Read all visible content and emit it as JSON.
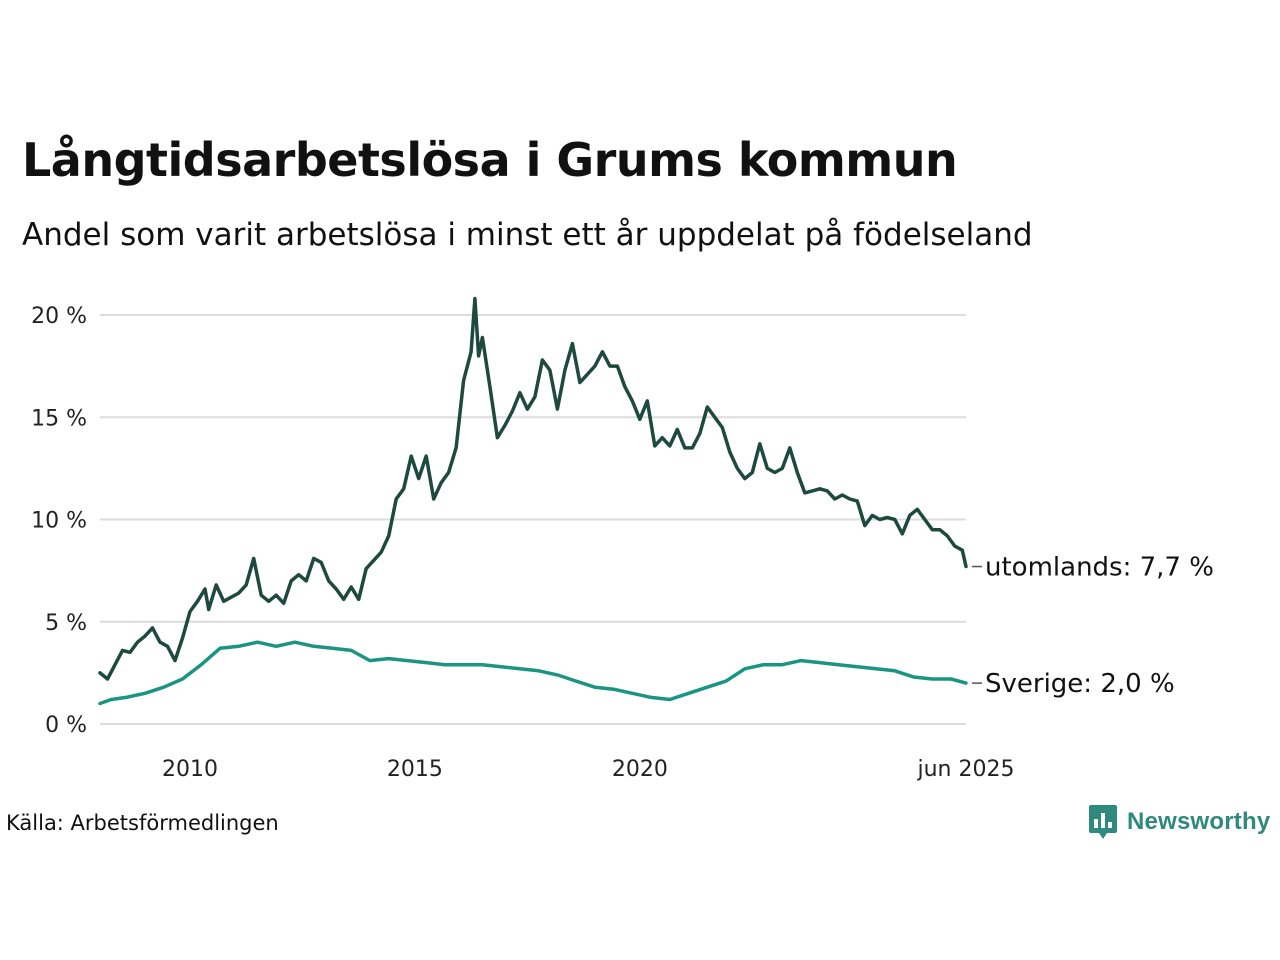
{
  "title": "Långtidsarbetslösa i Grums kommun",
  "subtitle": "Andel som varit arbetslösa i minst ett år uppdelat på födelseland",
  "source": "Källa: Arbetsförmedlingen",
  "brand": {
    "name": "Newsworthy",
    "icon": "newsworthy-logo-icon",
    "color": "#2e8a7c"
  },
  "chart_data": {
    "type": "line",
    "x_unit": "month",
    "x_ticks": [
      "2010",
      "2015",
      "2020",
      "jun 2025"
    ],
    "y_ticks": [
      "0 %",
      "5 %",
      "10 %",
      "15 %",
      "20 %"
    ],
    "ylim": [
      0,
      20
    ],
    "grid": true,
    "series": [
      {
        "name": "utomlands",
        "end_label": "utomlands: 7,7 %",
        "color": "#1e4a3e",
        "points": [
          [
            "2008-01",
            2.5
          ],
          [
            "2008-03",
            2.2
          ],
          [
            "2008-05",
            2.9
          ],
          [
            "2008-07",
            3.6
          ],
          [
            "2008-09",
            3.5
          ],
          [
            "2008-11",
            4.0
          ],
          [
            "2009-01",
            4.3
          ],
          [
            "2009-03",
            4.7
          ],
          [
            "2009-05",
            4.0
          ],
          [
            "2009-07",
            3.8
          ],
          [
            "2009-09",
            3.1
          ],
          [
            "2009-11",
            4.2
          ],
          [
            "2010-01",
            5.5
          ],
          [
            "2010-03",
            6.0
          ],
          [
            "2010-05",
            6.6
          ],
          [
            "2010-06",
            5.6
          ],
          [
            "2010-08",
            6.8
          ],
          [
            "2010-10",
            6.0
          ],
          [
            "2010-12",
            6.2
          ],
          [
            "2011-02",
            6.4
          ],
          [
            "2011-04",
            6.8
          ],
          [
            "2011-06",
            8.1
          ],
          [
            "2011-08",
            6.3
          ],
          [
            "2011-10",
            6.0
          ],
          [
            "2011-12",
            6.3
          ],
          [
            "2012-02",
            5.9
          ],
          [
            "2012-04",
            7.0
          ],
          [
            "2012-06",
            7.3
          ],
          [
            "2012-08",
            7.0
          ],
          [
            "2012-10",
            8.1
          ],
          [
            "2012-12",
            7.9
          ],
          [
            "2013-02",
            7.0
          ],
          [
            "2013-04",
            6.6
          ],
          [
            "2013-06",
            6.1
          ],
          [
            "2013-08",
            6.7
          ],
          [
            "2013-10",
            6.1
          ],
          [
            "2013-12",
            7.6
          ],
          [
            "2014-02",
            8.0
          ],
          [
            "2014-04",
            8.4
          ],
          [
            "2014-06",
            9.2
          ],
          [
            "2014-08",
            11.0
          ],
          [
            "2014-10",
            11.5
          ],
          [
            "2014-12",
            13.1
          ],
          [
            "2015-02",
            12.0
          ],
          [
            "2015-04",
            13.1
          ],
          [
            "2015-06",
            11.0
          ],
          [
            "2015-08",
            11.8
          ],
          [
            "2015-10",
            12.3
          ],
          [
            "2015-12",
            13.5
          ],
          [
            "2016-02",
            16.8
          ],
          [
            "2016-04",
            18.2
          ],
          [
            "2016-05",
            20.8
          ],
          [
            "2016-06",
            18.0
          ],
          [
            "2016-07",
            18.9
          ],
          [
            "2016-09",
            16.5
          ],
          [
            "2016-11",
            14.0
          ],
          [
            "2017-01",
            14.6
          ],
          [
            "2017-03",
            15.3
          ],
          [
            "2017-05",
            16.2
          ],
          [
            "2017-07",
            15.4
          ],
          [
            "2017-09",
            16.0
          ],
          [
            "2017-11",
            17.8
          ],
          [
            "2018-01",
            17.3
          ],
          [
            "2018-03",
            15.4
          ],
          [
            "2018-05",
            17.3
          ],
          [
            "2018-07",
            18.6
          ],
          [
            "2018-09",
            16.7
          ],
          [
            "2018-11",
            17.1
          ],
          [
            "2019-01",
            17.5
          ],
          [
            "2019-03",
            18.2
          ],
          [
            "2019-05",
            17.5
          ],
          [
            "2019-07",
            17.5
          ],
          [
            "2019-09",
            16.5
          ],
          [
            "2019-11",
            15.8
          ],
          [
            "2020-01",
            14.9
          ],
          [
            "2020-03",
            15.8
          ],
          [
            "2020-05",
            13.6
          ],
          [
            "2020-07",
            14.0
          ],
          [
            "2020-09",
            13.6
          ],
          [
            "2020-11",
            14.4
          ],
          [
            "2021-01",
            13.5
          ],
          [
            "2021-03",
            13.5
          ],
          [
            "2021-05",
            14.2
          ],
          [
            "2021-07",
            15.5
          ],
          [
            "2021-09",
            15.0
          ],
          [
            "2021-11",
            14.5
          ],
          [
            "2022-01",
            13.3
          ],
          [
            "2022-03",
            12.5
          ],
          [
            "2022-05",
            12.0
          ],
          [
            "2022-07",
            12.3
          ],
          [
            "2022-09",
            13.7
          ],
          [
            "2022-11",
            12.5
          ],
          [
            "2023-01",
            12.3
          ],
          [
            "2023-03",
            12.5
          ],
          [
            "2023-05",
            13.5
          ],
          [
            "2023-07",
            12.3
          ],
          [
            "2023-09",
            11.3
          ],
          [
            "2023-11",
            11.4
          ],
          [
            "2024-01",
            11.5
          ],
          [
            "2024-03",
            11.4
          ],
          [
            "2024-05",
            11.0
          ],
          [
            "2024-07",
            11.2
          ],
          [
            "2024-09",
            11.0
          ],
          [
            "2024-11",
            10.9
          ],
          [
            "2025-01",
            9.7
          ],
          [
            "2025-03",
            10.2
          ],
          [
            "2025-05",
            10.0
          ],
          [
            "2025-07",
            10.1
          ],
          [
            "2025-09",
            10.0
          ],
          [
            "2025-11",
            9.3
          ],
          [
            "2026-01",
            10.2
          ],
          [
            "2026-03",
            10.5
          ],
          [
            "2026-05",
            10.0
          ],
          [
            "2026-07",
            9.5
          ],
          [
            "2026-09",
            9.5
          ],
          [
            "2026-11",
            9.2
          ],
          [
            "2027-01",
            8.7
          ],
          [
            "2027-03",
            8.5
          ],
          [
            "2027-04",
            7.7
          ]
        ]
      },
      {
        "name": "Sverige",
        "end_label": "Sverige: 2,0 %",
        "color": "#1a9582",
        "points": [
          [
            "2008-01",
            1.0
          ],
          [
            "2008-04",
            1.2
          ],
          [
            "2008-08",
            1.3
          ],
          [
            "2009-01",
            1.5
          ],
          [
            "2009-06",
            1.8
          ],
          [
            "2009-11",
            2.2
          ],
          [
            "2010-04",
            2.9
          ],
          [
            "2010-09",
            3.7
          ],
          [
            "2011-02",
            3.8
          ],
          [
            "2011-07",
            4.0
          ],
          [
            "2011-12",
            3.8
          ],
          [
            "2012-05",
            4.0
          ],
          [
            "2012-10",
            3.8
          ],
          [
            "2013-03",
            3.7
          ],
          [
            "2013-08",
            3.6
          ],
          [
            "2014-01",
            3.1
          ],
          [
            "2014-06",
            3.2
          ],
          [
            "2014-11",
            3.1
          ],
          [
            "2015-04",
            3.0
          ],
          [
            "2015-09",
            2.9
          ],
          [
            "2016-02",
            2.9
          ],
          [
            "2016-07",
            2.9
          ],
          [
            "2016-12",
            2.8
          ],
          [
            "2017-05",
            2.7
          ],
          [
            "2017-10",
            2.6
          ],
          [
            "2018-03",
            2.4
          ],
          [
            "2018-08",
            2.1
          ],
          [
            "2019-01",
            1.8
          ],
          [
            "2019-06",
            1.7
          ],
          [
            "2019-11",
            1.5
          ],
          [
            "2020-04",
            1.3
          ],
          [
            "2020-09",
            1.2
          ],
          [
            "2021-02",
            1.5
          ],
          [
            "2021-07",
            1.8
          ],
          [
            "2021-12",
            2.1
          ],
          [
            "2022-05",
            2.7
          ],
          [
            "2022-10",
            2.9
          ],
          [
            "2023-03",
            2.9
          ],
          [
            "2023-08",
            3.1
          ],
          [
            "2024-01",
            3.0
          ],
          [
            "2024-06",
            2.9
          ],
          [
            "2024-11",
            2.8
          ],
          [
            "2025-04",
            2.7
          ],
          [
            "2025-09",
            2.6
          ],
          [
            "2026-02",
            2.3
          ],
          [
            "2026-07",
            2.2
          ],
          [
            "2026-12",
            2.2
          ],
          [
            "2027-04",
            2.0
          ]
        ]
      }
    ]
  }
}
